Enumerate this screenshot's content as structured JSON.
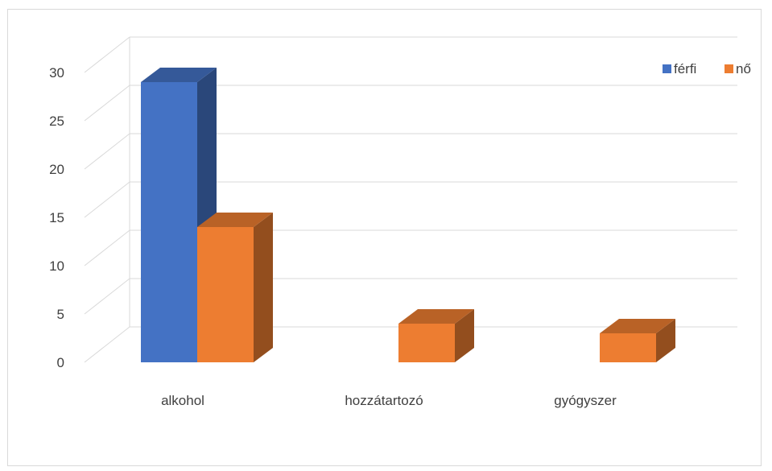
{
  "chart_data": {
    "type": "bar",
    "style": "3d-clustered-column",
    "categories": [
      "alkohol",
      "hozzátartozó",
      "gyógyszer"
    ],
    "series": [
      {
        "name": "férfi",
        "color": "#4472C4",
        "values": [
          29,
          0,
          0
        ]
      },
      {
        "name": "nő",
        "color": "#ED7D31",
        "values": [
          14,
          4,
          3
        ]
      }
    ],
    "yticks": [
      0,
      5,
      10,
      15,
      20,
      25,
      30
    ],
    "ylim": [
      0,
      30
    ],
    "grid": true,
    "legend_position": "top-right",
    "title": "",
    "xlabel": "",
    "ylabel": ""
  }
}
